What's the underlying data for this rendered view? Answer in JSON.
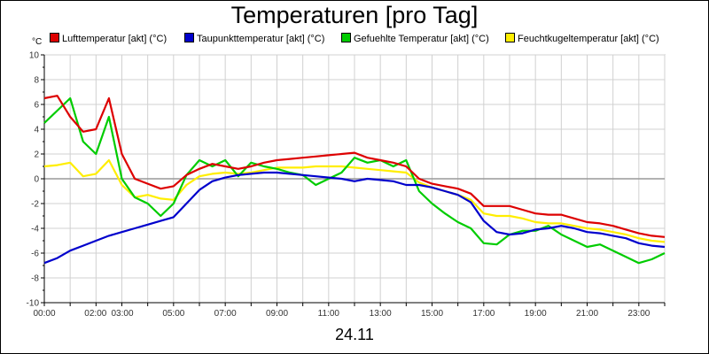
{
  "title": "Temperaturen [pro Tag]",
  "date_label": "24.11",
  "unit": "°C",
  "chart_data": {
    "type": "line",
    "title": "Temperaturen [pro Tag]",
    "xlabel": "24.11",
    "ylabel": "°C",
    "xlim": [
      0,
      24
    ],
    "ylim": [
      -10,
      10
    ],
    "grid": true,
    "legend_position": "top",
    "x_tick_labels": [
      "00:00",
      "02:00",
      "03:00",
      "05:00",
      "07:00",
      "09:00",
      "11:00",
      "13:00",
      "15:00",
      "17:00",
      "19:00",
      "21:00",
      "23:00"
    ],
    "x_tick_values": [
      0,
      2,
      3,
      5,
      7,
      9,
      11,
      13,
      15,
      17,
      19,
      21,
      23
    ],
    "y_tick_labels": [
      "10",
      "8",
      "6",
      "4",
      "2",
      "0",
      "-2",
      "-4",
      "-6",
      "-8",
      "-10"
    ],
    "y_tick_values": [
      10,
      8,
      6,
      4,
      2,
      0,
      -2,
      -4,
      -6,
      -8,
      -10
    ],
    "x": [
      0,
      0.5,
      1,
      1.5,
      2,
      2.5,
      3,
      3.5,
      4,
      4.5,
      5,
      5.5,
      6,
      6.5,
      7,
      7.5,
      8,
      8.5,
      9,
      9.5,
      10,
      10.5,
      11,
      11.5,
      12,
      12.5,
      13,
      13.5,
      14,
      14.5,
      15,
      15.5,
      16,
      16.5,
      17,
      17.5,
      18,
      18.5,
      19,
      19.5,
      20,
      20.5,
      21,
      21.5,
      22,
      22.5,
      23,
      23.5,
      24
    ],
    "series": [
      {
        "name": "Lufttemperatur [akt] (°C)",
        "color": "#dd0000",
        "values": [
          6.5,
          6.7,
          5.0,
          3.8,
          4.0,
          6.5,
          2.0,
          0.0,
          -0.4,
          -0.8,
          -0.6,
          0.3,
          0.8,
          1.2,
          1.0,
          0.8,
          1.0,
          1.3,
          1.5,
          1.6,
          1.7,
          1.8,
          1.9,
          2.0,
          2.1,
          1.7,
          1.5,
          1.3,
          1.0,
          0.0,
          -0.4,
          -0.6,
          -0.8,
          -1.2,
          -2.2,
          -2.2,
          -2.2,
          -2.5,
          -2.8,
          -2.9,
          -2.9,
          -3.2,
          -3.5,
          -3.6,
          -3.8,
          -4.1,
          -4.4,
          -4.6,
          -4.7
        ]
      },
      {
        "name": "Taupunkttemperatur [akt] (°C)",
        "color": "#0000cc",
        "values": [
          -6.8,
          -6.4,
          -5.8,
          -5.4,
          -5.0,
          -4.6,
          -4.3,
          -4.0,
          -3.7,
          -3.4,
          -3.1,
          -2.0,
          -0.9,
          -0.2,
          0.1,
          0.3,
          0.4,
          0.5,
          0.5,
          0.4,
          0.3,
          0.2,
          0.1,
          0.0,
          -0.2,
          0.0,
          -0.1,
          -0.2,
          -0.5,
          -0.5,
          -0.7,
          -1.0,
          -1.3,
          -1.9,
          -3.4,
          -4.3,
          -4.5,
          -4.4,
          -4.1,
          -4.0,
          -3.8,
          -4.0,
          -4.3,
          -4.4,
          -4.6,
          -4.8,
          -5.2,
          -5.4,
          -5.5
        ]
      },
      {
        "name": "Gefuehlte Temperatur [akt] (°C)",
        "color": "#00cc00",
        "values": [
          4.5,
          5.5,
          6.5,
          3.0,
          2.0,
          5.0,
          0.0,
          -1.5,
          -2.0,
          -3.0,
          -2.0,
          0.3,
          1.5,
          1.0,
          1.5,
          0.2,
          1.3,
          1.0,
          0.8,
          0.5,
          0.3,
          -0.5,
          0.0,
          0.5,
          1.7,
          1.3,
          1.5,
          1.0,
          1.5,
          -1.0,
          -2.0,
          -2.8,
          -3.5,
          -4.0,
          -5.2,
          -5.3,
          -4.5,
          -4.2,
          -4.2,
          -3.8,
          -4.5,
          -5.0,
          -5.5,
          -5.3,
          -5.8,
          -6.3,
          -6.8,
          -6.5,
          -6.0
        ]
      },
      {
        "name": "Feuchtkugeltemperatur [akt] (°C)",
        "color": "#ffee00",
        "values": [
          1.0,
          1.1,
          1.3,
          0.2,
          0.4,
          1.5,
          -0.5,
          -1.5,
          -1.3,
          -1.6,
          -1.7,
          -0.5,
          0.2,
          0.4,
          0.5,
          0.4,
          0.5,
          0.7,
          0.9,
          0.9,
          0.9,
          1.0,
          1.0,
          1.0,
          0.9,
          0.8,
          0.7,
          0.6,
          0.5,
          -0.3,
          -0.7,
          -1.0,
          -1.3,
          -1.7,
          -2.8,
          -3.0,
          -3.0,
          -3.2,
          -3.5,
          -3.6,
          -3.6,
          -3.8,
          -4.0,
          -4.1,
          -4.3,
          -4.5,
          -4.8,
          -5.0,
          -5.1
        ]
      }
    ]
  }
}
